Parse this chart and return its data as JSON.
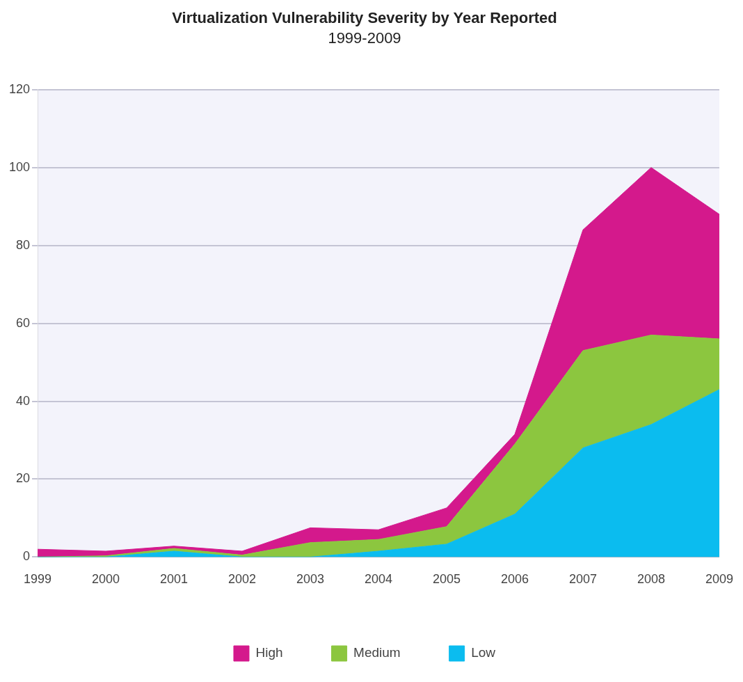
{
  "chart_data": {
    "type": "area",
    "title": "Virtualization Vulnerability Severity by Year Reported",
    "subtitle": "1999-2009",
    "categories": [
      "1999",
      "2000",
      "2001",
      "2002",
      "2003",
      "2004",
      "2005",
      "2006",
      "2007",
      "2008",
      "2009"
    ],
    "stacked": true,
    "series": [
      {
        "name": "Low",
        "color": "#0bbcef",
        "values": [
          0,
          0,
          1.5,
          0,
          0,
          1.5,
          3.3,
          11,
          28,
          34,
          43
        ]
      },
      {
        "name": "Medium",
        "color": "#8cc63f",
        "values": [
          0,
          0.3,
          0.7,
          0.5,
          3.7,
          3,
          4.5,
          18,
          25,
          23,
          13
        ]
      },
      {
        "name": "High",
        "color": "#d4198c",
        "values": [
          2,
          1.2,
          0.6,
          1,
          3.8,
          2.5,
          4.8,
          2.5,
          31,
          43,
          32
        ]
      }
    ],
    "ylim": [
      0,
      120
    ],
    "yticks": [
      0,
      20,
      40,
      60,
      80,
      100,
      120
    ],
    "grid": "y",
    "legend": "bottom"
  }
}
